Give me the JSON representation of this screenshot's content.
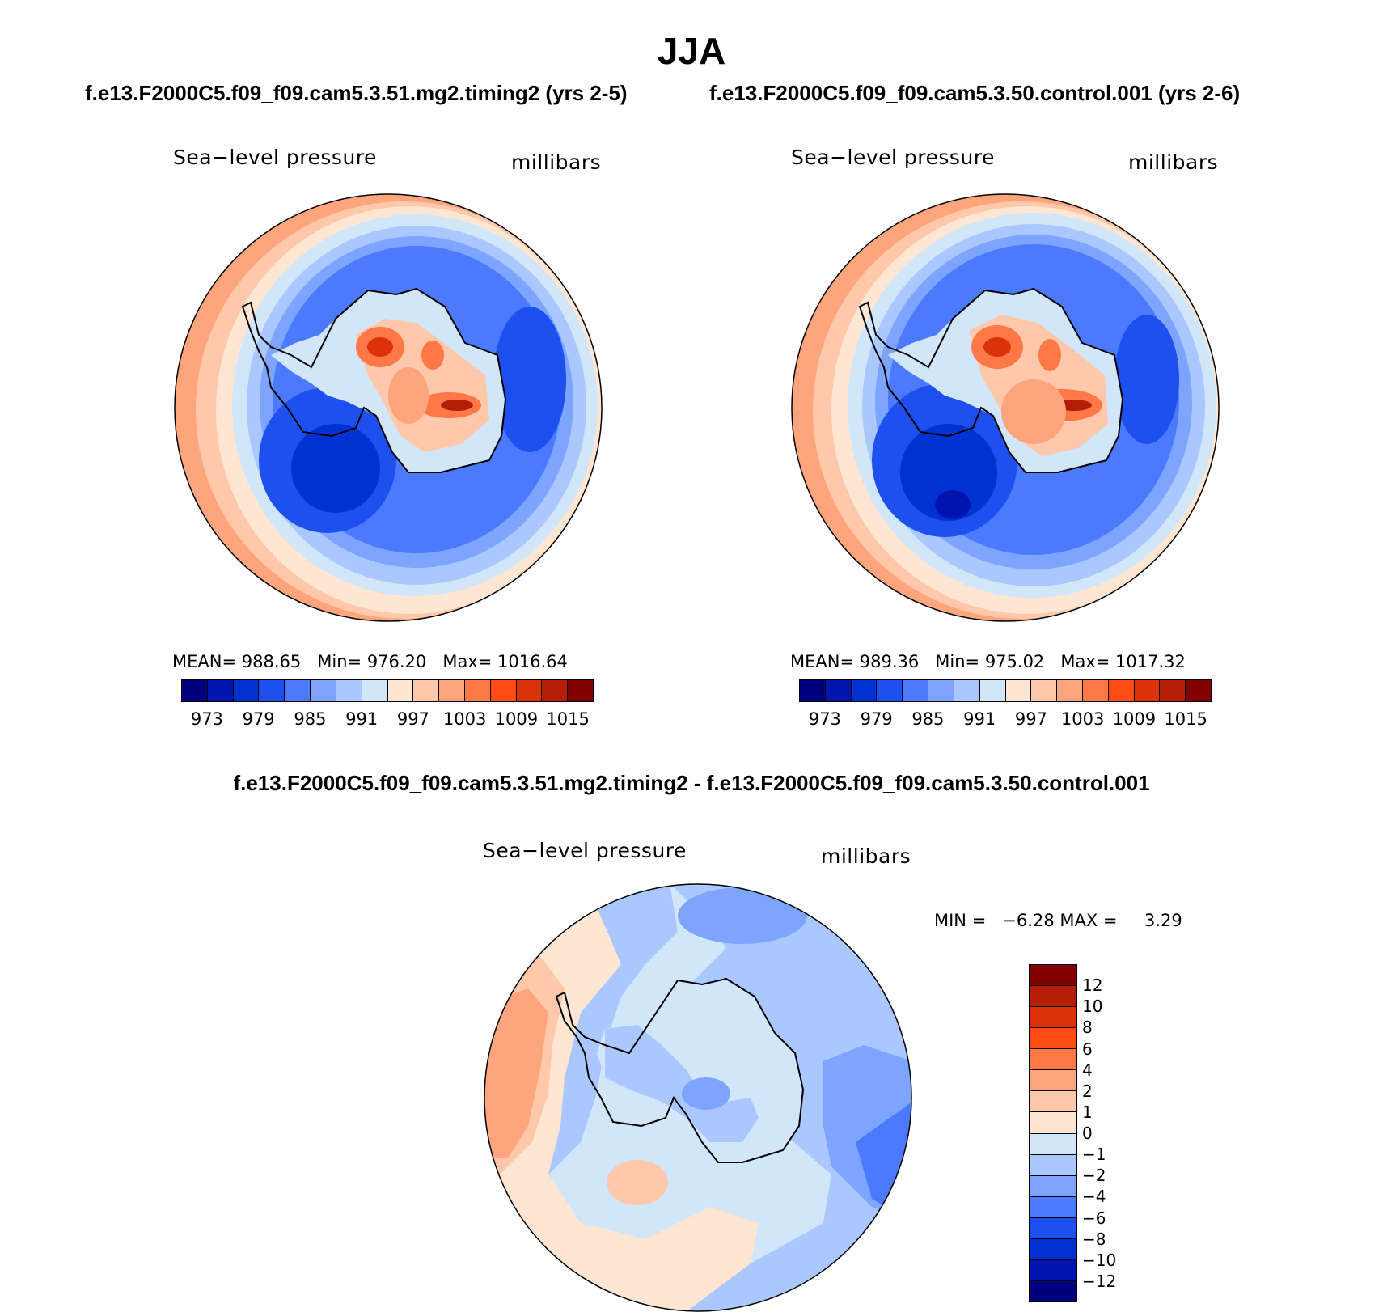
{
  "title": "JJA",
  "panels": [
    {
      "case_title": "f.e13.F2000C5.f09_f09.cam5.3.51.mg2.timing2 (yrs 2-5)",
      "variable": "Sea−level pressure",
      "units": "millibars",
      "stats": {
        "mean_label": "MEAN=",
        "mean": "988.65",
        "min_label": "Min=",
        "min": "976.20",
        "max_label": "Max=",
        "max": "1016.64"
      }
    },
    {
      "case_title": "f.e13.F2000C5.f09_f09.cam5.3.50.control.001 (yrs 2-6)",
      "variable": "Sea−level pressure",
      "units": "millibars",
      "stats": {
        "mean_label": "MEAN=",
        "mean": "989.36",
        "min_label": "Min=",
        "min": "975.02",
        "max_label": "Max=",
        "max": "1017.32"
      }
    }
  ],
  "abs_colorbar": {
    "colors": [
      "#00007f",
      "#0015ae",
      "#0032d2",
      "#1e50f0",
      "#4b7aff",
      "#7da5ff",
      "#aac8ff",
      "#d2e6fa",
      "#ffe6d2",
      "#ffc8aa",
      "#ffa57d",
      "#ff7846",
      "#ff4b14",
      "#dc320a",
      "#b41e05",
      "#820000"
    ],
    "tick_labels": [
      "973",
      "979",
      "985",
      "991",
      "997",
      "1003",
      "1009",
      "1015"
    ]
  },
  "diff_panel": {
    "case_title": "f.e13.F2000C5.f09_f09.cam5.3.51.mg2.timing2 - f.e13.F2000C5.f09_f09.cam5.3.50.control.001",
    "variable": "Sea−level pressure",
    "units": "millibars",
    "min_label": "MIN =",
    "min": "−6.28",
    "max_label": "MAX =",
    "max": "3.29"
  },
  "diff_colorbar": {
    "colors": [
      "#820000",
      "#b41e05",
      "#dc320a",
      "#ff4b14",
      "#ff7846",
      "#ffa57d",
      "#ffc8aa",
      "#ffe6d2",
      "#d2e6fa",
      "#aac8ff",
      "#7da5ff",
      "#4b7aff",
      "#1e50f0",
      "#0032d2",
      "#0015ae",
      "#00007f"
    ],
    "tick_labels": [
      "12",
      "10",
      "8",
      "6",
      "4",
      "2",
      "1",
      "0",
      "−1",
      "−2",
      "−4",
      "−6",
      "−8",
      "−10",
      "−12"
    ]
  }
}
